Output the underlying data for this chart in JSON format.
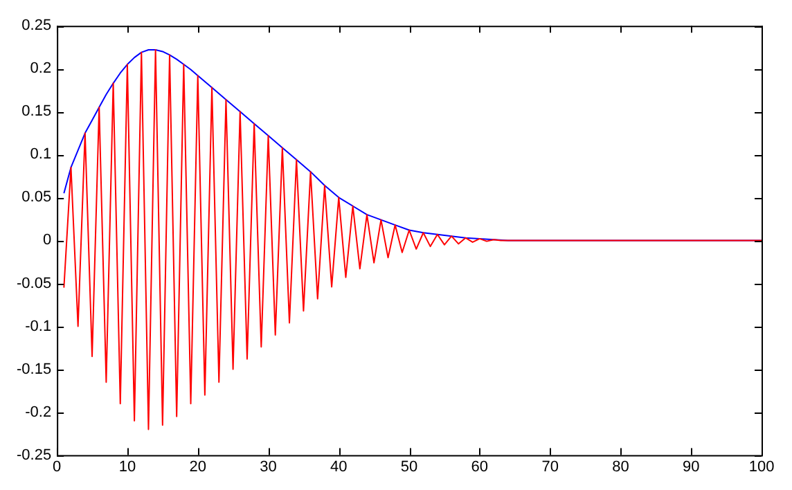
{
  "chart_data": {
    "type": "line",
    "grid": false,
    "marker": "none",
    "line_style": "solid",
    "legend": false,
    "xlim": [
      0,
      100
    ],
    "xticks": [
      0,
      10,
      20,
      30,
      40,
      50,
      60,
      70,
      80,
      90,
      100
    ],
    "ylim": [
      -0.25,
      0.25
    ],
    "yticks": [
      -0.25,
      -0.2,
      -0.15,
      -0.1,
      -0.05,
      0,
      0.05,
      0.1,
      0.15,
      0.2,
      0.25
    ],
    "series": [
      {
        "color": "#ff0000",
        "x": [
          1,
          2,
          3,
          4,
          5,
          6,
          7,
          8,
          9,
          10,
          11,
          12,
          13,
          14,
          15,
          16,
          17,
          18,
          19,
          20,
          21,
          22,
          23,
          24,
          25,
          26,
          27,
          28,
          29,
          30,
          31,
          32,
          33,
          34,
          35,
          36,
          37,
          38,
          39,
          40,
          41,
          42,
          43,
          44,
          45,
          46,
          47,
          48,
          49,
          50,
          51,
          52,
          53,
          54,
          55,
          56,
          57,
          58,
          59,
          60,
          61,
          62,
          63,
          100
        ],
        "values": [
          -0.055,
          0.085,
          -0.1,
          0.125,
          -0.135,
          0.155,
          -0.165,
          0.183,
          -0.19,
          0.205,
          -0.21,
          0.219,
          -0.22,
          0.222,
          -0.215,
          0.216,
          -0.205,
          0.205,
          -0.19,
          0.192,
          -0.18,
          0.178,
          -0.165,
          0.164,
          -0.15,
          0.15,
          -0.138,
          0.136,
          -0.124,
          0.122,
          -0.11,
          0.108,
          -0.096,
          0.094,
          -0.082,
          0.08,
          -0.068,
          0.064,
          -0.054,
          0.05,
          -0.043,
          0.04,
          -0.033,
          0.03,
          -0.026,
          0.024,
          -0.02,
          0.018,
          -0.014,
          0.012,
          -0.01,
          0.009,
          -0.007,
          0.007,
          -0.005,
          0.005,
          -0.004,
          0.003,
          -0.002,
          0.002,
          -0.001,
          0.001,
          0,
          0
        ]
      },
      {
        "color": "#0000ff",
        "x": [
          1,
          2,
          3,
          4,
          5,
          6,
          7,
          8,
          9,
          10,
          11,
          12,
          13,
          14,
          15,
          16,
          17,
          18,
          19,
          20,
          22,
          24,
          26,
          28,
          30,
          32,
          34,
          36,
          38,
          40,
          42,
          44,
          46,
          48,
          50,
          52,
          54,
          56,
          58,
          60,
          62,
          64,
          100
        ],
        "values": [
          0.055,
          0.085,
          0.105,
          0.125,
          0.14,
          0.155,
          0.17,
          0.183,
          0.195,
          0.205,
          0.213,
          0.219,
          0.222,
          0.222,
          0.22,
          0.216,
          0.211,
          0.205,
          0.199,
          0.192,
          0.178,
          0.164,
          0.15,
          0.136,
          0.122,
          0.108,
          0.094,
          0.08,
          0.064,
          0.05,
          0.04,
          0.03,
          0.024,
          0.018,
          0.012,
          0.009,
          0.007,
          0.005,
          0.003,
          0.002,
          0.001,
          0,
          0
        ]
      }
    ]
  }
}
